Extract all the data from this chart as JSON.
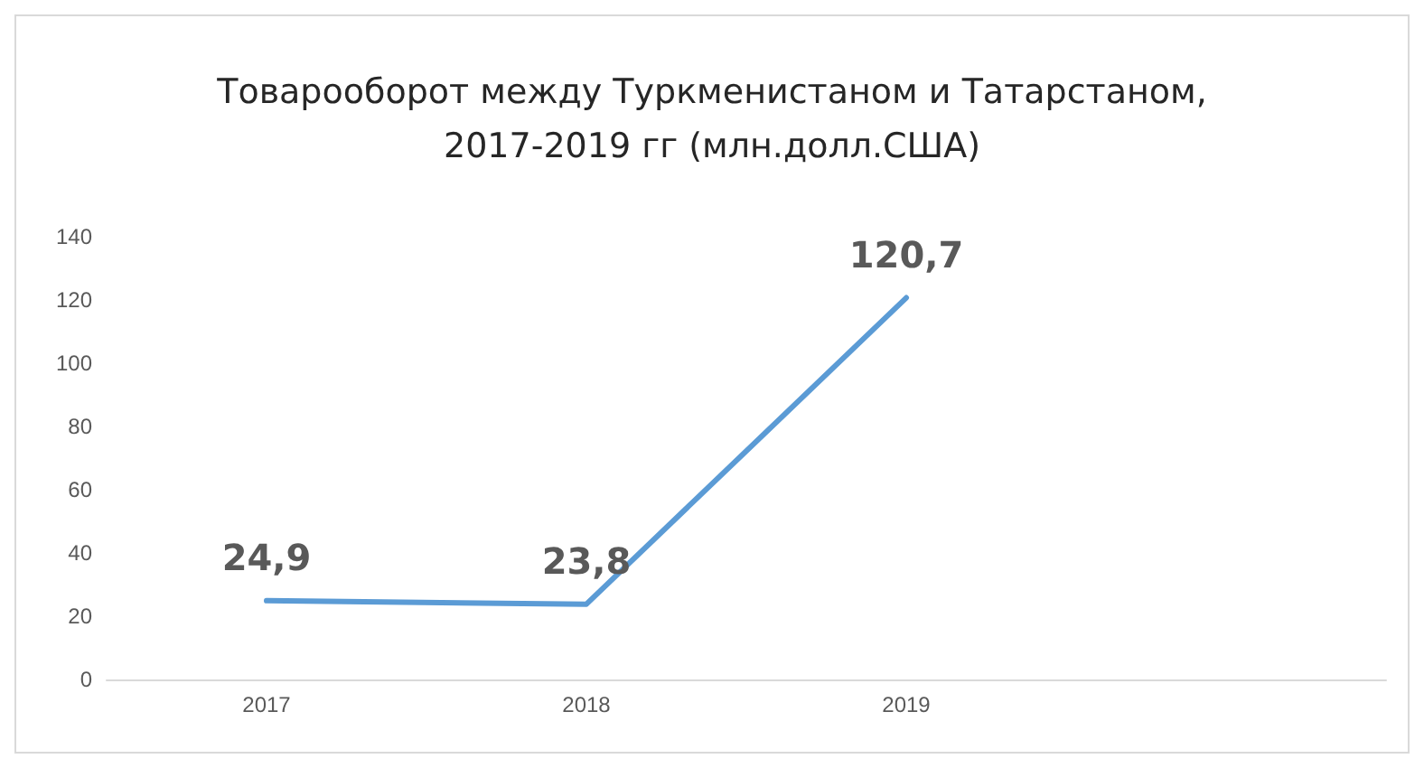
{
  "chart_data": {
    "type": "line",
    "title": "Товарооборот между Туркменистаном и Татарстаном,\n2017-2019 гг (млн.долл.США)",
    "categories": [
      "2017",
      "2018",
      "2019",
      null
    ],
    "series": [
      {
        "color": "#5b9bd5",
        "values": [
          24.9,
          23.8,
          120.7,
          null
        ],
        "value_labels": [
          "24,9",
          "23,8",
          "120,7",
          null
        ]
      }
    ],
    "ylim": [
      0,
      140
    ],
    "yticks": [
      0,
      20,
      40,
      60,
      80,
      100,
      120,
      140
    ],
    "marker": "none"
  }
}
